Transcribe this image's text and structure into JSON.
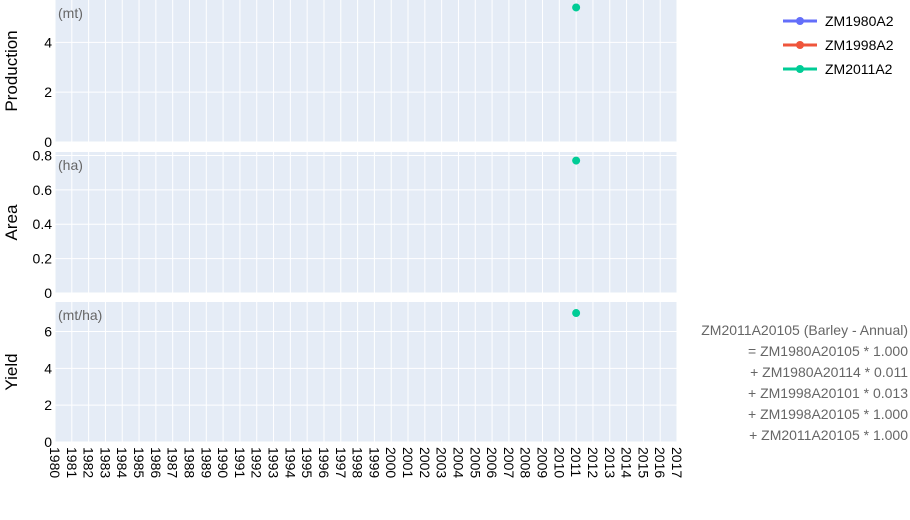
{
  "chart_data": {
    "type": "scatter",
    "x_tick_labels": [
      "1980",
      "1981",
      "1982",
      "1983",
      "1984",
      "1985",
      "1986",
      "1987",
      "1988",
      "1989",
      "1990",
      "1991",
      "1992",
      "1993",
      "1994",
      "1995",
      "1996",
      "1997",
      "1998",
      "1999",
      "2000",
      "2001",
      "2002",
      "2003",
      "2004",
      "2005",
      "2006",
      "2007",
      "2008",
      "2009",
      "2010",
      "2011",
      "2012",
      "2013",
      "2014",
      "2015",
      "2016",
      "2017"
    ],
    "xlim": [
      1980,
      2017
    ],
    "legend": {
      "placement": "top-right",
      "entries": [
        {
          "name": "ZM1980A2",
          "color": "#636efa"
        },
        {
          "name": "ZM1998A2",
          "color": "#ef553b"
        },
        {
          "name": "ZM2011A2",
          "color": "#00cc96"
        }
      ]
    },
    "panels": [
      {
        "ylabel": "Production",
        "unit": "(mt)",
        "ylim": [
          0,
          5.7
        ],
        "yticks": [
          0,
          2,
          4
        ],
        "series": [
          {
            "name": "ZM2011A2",
            "x": [
              2011
            ],
            "y": [
              5.4
            ]
          }
        ]
      },
      {
        "ylabel": "Area",
        "unit": "(ha)",
        "ylim": [
          0,
          0.82
        ],
        "yticks": [
          0,
          0.2,
          0.4,
          0.6,
          0.8
        ],
        "series": [
          {
            "name": "ZM2011A2",
            "x": [
              2011
            ],
            "y": [
              0.77
            ]
          }
        ]
      },
      {
        "ylabel": "Yield",
        "unit": "(mt/ha)",
        "ylim": [
          0,
          7.6
        ],
        "yticks": [
          0,
          2,
          4,
          6
        ],
        "series": [
          {
            "name": "ZM2011A2",
            "x": [
              2011
            ],
            "y": [
              7.0
            ]
          }
        ]
      }
    ],
    "annotation_lines": [
      "ZM2011A20105 (Barley - Annual)",
      "= ZM1980A20105 * 1.000",
      "+ ZM1980A20114 * 0.011",
      "+ ZM1998A20101 * 0.013",
      "+ ZM1998A20105 * 1.000",
      "+ ZM2011A20105 * 1.000"
    ],
    "grid": true,
    "plot_background": "#e5ecf6"
  }
}
